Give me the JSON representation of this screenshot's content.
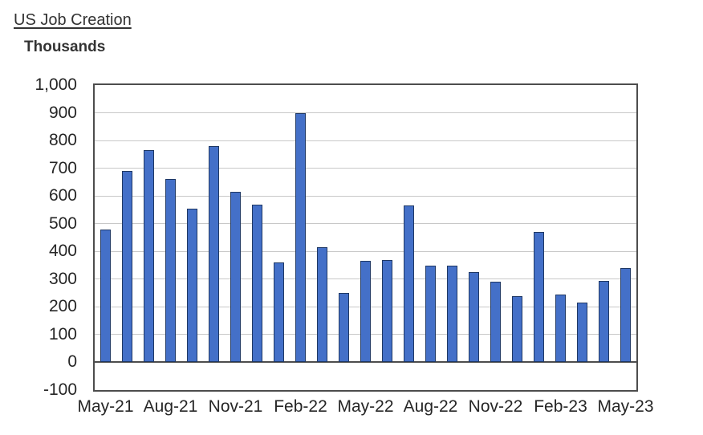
{
  "header": {
    "title": "US Job Creation",
    "units_label": "Thousands"
  },
  "chart_data": {
    "type": "bar",
    "title": "US Job Creation",
    "ylabel": "Thousands",
    "xlabel": "",
    "categories": [
      "May-21",
      "Jun-21",
      "Jul-21",
      "Aug-21",
      "Sep-21",
      "Oct-21",
      "Nov-21",
      "Dec-21",
      "Jan-22",
      "Feb-22",
      "Mar-22",
      "Apr-22",
      "May-22",
      "Jun-22",
      "Jul-22",
      "Aug-22",
      "Sep-22",
      "Oct-22",
      "Nov-22",
      "Dec-22",
      "Jan-23",
      "Feb-23",
      "Mar-23",
      "Apr-23",
      "May-23"
    ],
    "values": [
      480,
      690,
      765,
      660,
      555,
      780,
      615,
      570,
      360,
      900,
      415,
      250,
      365,
      370,
      565,
      350,
      350,
      325,
      290,
      240,
      470,
      245,
      215,
      295,
      340
    ],
    "x_tick_labels": [
      "May-21",
      "Aug-21",
      "Nov-21",
      "Feb-22",
      "May-22",
      "Aug-22",
      "Nov-22",
      "Feb-23",
      "May-23"
    ],
    "x_tick_step": 3,
    "y_ticks": [
      1000,
      900,
      800,
      700,
      600,
      500,
      400,
      300,
      200,
      100,
      0,
      -100
    ],
    "y_tick_labels": [
      "1,000",
      "900",
      "800",
      "700",
      "600",
      "500",
      "400",
      "300",
      "200",
      "100",
      "0",
      "-100"
    ],
    "ylim": [
      -100,
      1000
    ],
    "grid": "horizontal",
    "legend": "none",
    "colors": {
      "bar_fill": "#4470c8",
      "bar_border": "#1f3864",
      "gridline": "#c8c8c8",
      "axis": "#4d4d4d",
      "text": "#262626"
    }
  }
}
